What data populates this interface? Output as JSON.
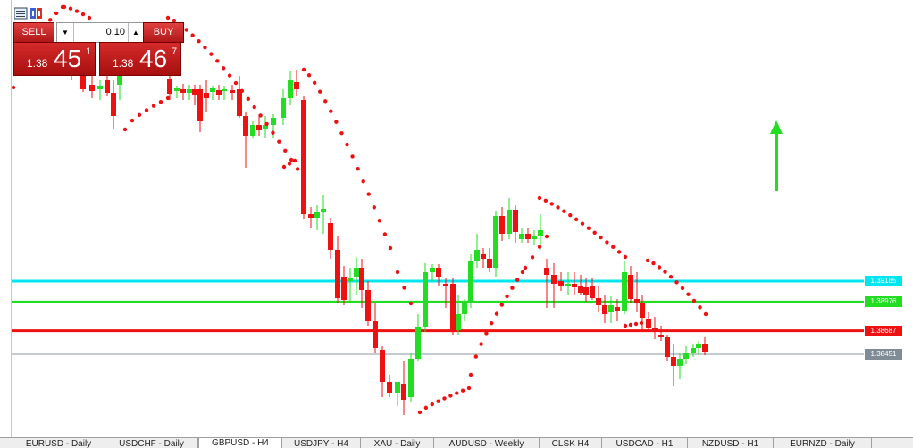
{
  "window": {
    "price_levels": [
      {
        "label": "1.39185",
        "price": 1.39185,
        "color": "#00e5ee",
        "tag_color": "#00e5ee"
      },
      {
        "label": "1.38976",
        "price": 1.38976,
        "color": "#22dd22",
        "tag_color": "#22dd22"
      },
      {
        "label": "1.38687",
        "price": 1.38687,
        "color": "#ee1111",
        "tag_color": "#ee1111"
      },
      {
        "label": "1.38451",
        "price": 1.38451,
        "color": "#8899a6",
        "tag_color": "#7f8c96"
      }
    ],
    "colors": {
      "bull_candle": "#22dd22",
      "bear_candle": "#ee1111",
      "psar_dots": "#ee1111",
      "signal_arrow": "#22dd22",
      "otc_red": "#c41e1e"
    },
    "signal_arrow": {
      "direction": "up",
      "icon": "arrow-up-icon"
    }
  },
  "one_click_trading": {
    "sell_label": "SELL",
    "buy_label": "BUY",
    "lot_value": "0.10",
    "sell_price": {
      "prefix": "1.38",
      "big": "45",
      "sup": "1"
    },
    "buy_price": {
      "prefix": "1.38",
      "big": "46",
      "sup": "7"
    },
    "lot_down_icon": "triangle-down-icon",
    "lot_up_icon": "triangle-up-icon"
  },
  "tabs": [
    {
      "label": "EURUSD - Daily",
      "active": false
    },
    {
      "label": "USDCHF - Daily",
      "active": false
    },
    {
      "label": "GBPUSD - H4",
      "active": true
    },
    {
      "label": "USDJPY - H4",
      "active": false
    },
    {
      "label": "XAU - Daily",
      "active": false
    },
    {
      "label": "AUDUSD - Weekly",
      "active": false
    },
    {
      "label": "CLSK H4",
      "active": false
    },
    {
      "label": "USDCAD - H1",
      "active": false
    },
    {
      "label": "NZDUSD - H1",
      "active": false
    },
    {
      "label": "EURNZD - Daily",
      "active": false
    }
  ]
}
